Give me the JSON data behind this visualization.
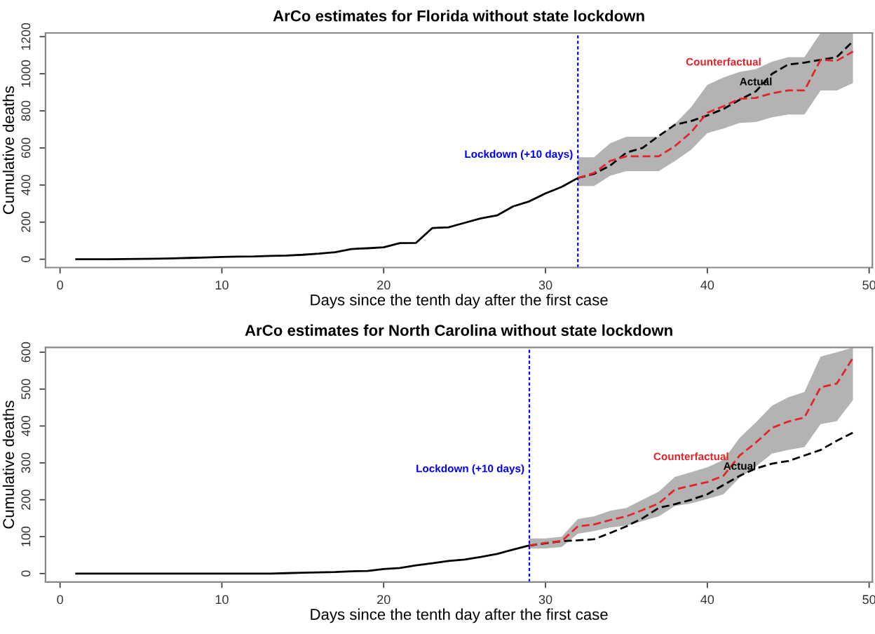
{
  "chart_data": [
    {
      "type": "line",
      "title": "ArCo estimates for Florida without state lockdown",
      "xlabel": "Days since the tenth day after the first case",
      "ylabel": "Cumulative deaths",
      "xlim": [
        -0.9,
        50.2
      ],
      "ylim": [
        -45,
        1220
      ],
      "xticks": [
        0,
        10,
        20,
        30,
        40,
        50
      ],
      "yticks": [
        0,
        200,
        400,
        600,
        800,
        1000,
        1200
      ],
      "grid": false,
      "legend": false,
      "ref_lines": [
        {
          "axis": "x",
          "value": 32,
          "label": "Lockdown (+10 days)",
          "color": "#0000ff",
          "line_style": "dashed"
        }
      ],
      "series": [
        {
          "color": "#000000",
          "line_style": "solid",
          "x": [
            1,
            2,
            3,
            4,
            5,
            6,
            7,
            8,
            9,
            10,
            11,
            12,
            13,
            14,
            15,
            16,
            17,
            18,
            19,
            20,
            21,
            22,
            23,
            24,
            25,
            26,
            27,
            28,
            29,
            30,
            31,
            32
          ],
          "values": [
            0,
            0,
            0,
            1,
            2,
            3,
            5,
            7,
            9,
            12,
            14,
            15,
            18,
            20,
            24,
            30,
            38,
            55,
            59,
            64,
            87,
            88,
            168,
            172,
            196,
            220,
            236,
            285,
            312,
            355,
            390,
            438
          ]
        },
        {
          "name": "Actual",
          "color": "#000000",
          "line_style": "dashed",
          "x": [
            32,
            33,
            34,
            35,
            36,
            37,
            38,
            39,
            40,
            41,
            42,
            43,
            44,
            45,
            46,
            47,
            48,
            49
          ],
          "values": [
            438,
            460,
            505,
            575,
            600,
            665,
            725,
            745,
            775,
            810,
            860,
            905,
            1000,
            1050,
            1060,
            1075,
            1090,
            1175
          ]
        },
        {
          "name": "Counterfactual",
          "color": "#e3242b",
          "line_style": "dashed",
          "x": [
            32,
            33,
            34,
            35,
            36,
            37,
            38,
            39,
            40,
            41,
            42,
            43,
            44,
            45,
            46,
            47,
            48,
            49
          ],
          "values": [
            438,
            465,
            530,
            555,
            555,
            555,
            610,
            685,
            790,
            825,
            865,
            870,
            895,
            910,
            910,
            1075,
            1070,
            1120
          ],
          "lower": [
            395,
            395,
            450,
            475,
            475,
            475,
            530,
            590,
            680,
            705,
            735,
            740,
            765,
            780,
            780,
            910,
            910,
            950
          ],
          "upper": [
            550,
            550,
            625,
            660,
            660,
            660,
            730,
            820,
            940,
            980,
            1010,
            1025,
            1065,
            1090,
            1090,
            1220,
            1220,
            1220
          ]
        }
      ]
    },
    {
      "type": "line",
      "title": "ArCo estimates for North Carolina without state lockdown",
      "xlabel": "Days since the tenth day after the first case",
      "ylabel": "Cumulative deaths",
      "xlim": [
        -0.9,
        50.2
      ],
      "ylim": [
        -23,
        613
      ],
      "xticks": [
        0,
        10,
        20,
        30,
        40,
        50
      ],
      "yticks": [
        0,
        100,
        200,
        300,
        400,
        500,
        600
      ],
      "grid": false,
      "legend": false,
      "ref_lines": [
        {
          "axis": "x",
          "value": 29,
          "label": "Lockdown (+10 days)",
          "color": "#0000ff",
          "line_style": "dashed"
        }
      ],
      "series": [
        {
          "color": "#000000",
          "line_style": "solid",
          "x": [
            1,
            2,
            3,
            4,
            5,
            6,
            7,
            8,
            9,
            10,
            11,
            12,
            13,
            14,
            15,
            16,
            17,
            18,
            19,
            20,
            21,
            22,
            23,
            24,
            25,
            26,
            27,
            28,
            29
          ],
          "values": [
            0,
            0,
            0,
            0,
            0,
            0,
            0,
            0,
            0,
            0,
            0,
            0,
            0,
            1,
            2,
            3,
            4,
            6,
            7,
            12,
            15,
            22,
            28,
            34,
            38,
            45,
            53,
            65,
            76
          ]
        },
        {
          "name": "Actual",
          "color": "#000000",
          "line_style": "dashed",
          "x": [
            29,
            30,
            31,
            32,
            33,
            34,
            35,
            36,
            37,
            38,
            39,
            40,
            41,
            42,
            43,
            44,
            45,
            46,
            47,
            48,
            49
          ],
          "values": [
            76,
            82,
            88,
            90,
            93,
            110,
            128,
            150,
            178,
            188,
            200,
            215,
            240,
            265,
            285,
            298,
            305,
            320,
            335,
            360,
            382
          ]
        },
        {
          "name": "Counterfactual",
          "color": "#e3242b",
          "line_style": "dashed",
          "x": [
            29,
            30,
            31,
            32,
            33,
            34,
            35,
            36,
            37,
            38,
            39,
            40,
            41,
            42,
            43,
            44,
            45,
            46,
            47,
            48,
            49
          ],
          "values": [
            76,
            83,
            88,
            128,
            133,
            145,
            155,
            172,
            190,
            228,
            238,
            248,
            265,
            320,
            355,
            395,
            412,
            423,
            505,
            515,
            585
          ],
          "lower": [
            68,
            68,
            72,
            108,
            115,
            125,
            130,
            142,
            155,
            183,
            190,
            202,
            215,
            260,
            290,
            325,
            335,
            343,
            405,
            413,
            470
          ],
          "upper": [
            95,
            95,
            100,
            148,
            155,
            170,
            178,
            200,
            222,
            262,
            275,
            288,
            308,
            368,
            410,
            455,
            478,
            492,
            588,
            600,
            613
          ]
        }
      ]
    }
  ]
}
